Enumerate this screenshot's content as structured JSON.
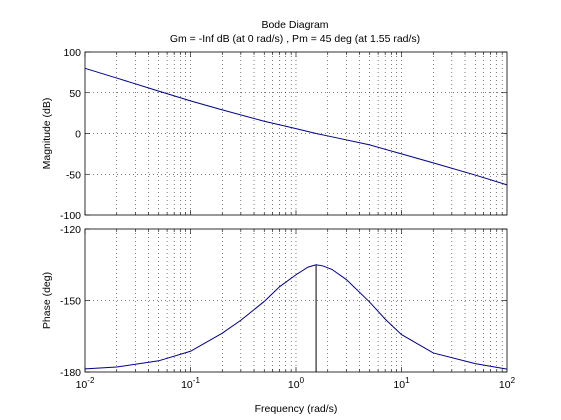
{
  "colors": {
    "background": "#ffffff",
    "axes": "#000000",
    "grid": "#000000",
    "line": "#00008b"
  },
  "chart_data": [
    {
      "type": "line",
      "title": "Bode Diagram",
      "subtitle": "Gm = -Inf dB (at 0 rad/s) ,  Pm = 45 deg (at 1.55 rad/s)",
      "xlabel": "",
      "ylabel": "Magnitude (dB)",
      "xscale": "log",
      "xlim": [
        0.01,
        100
      ],
      "ylim": [
        -100,
        100
      ],
      "yticks": [
        -100,
        -50,
        0,
        50,
        100
      ],
      "ytick_labels": [
        "-100",
        "-50",
        "0",
        "50",
        "100"
      ],
      "grid": true,
      "series": [
        {
          "x": [
            0.01,
            0.02,
            0.05,
            0.1,
            0.2,
            0.5,
            1,
            1.55,
            2,
            5,
            10,
            20,
            50,
            100
          ],
          "y": [
            80,
            68,
            52,
            40,
            29,
            15,
            6,
            0,
            -3,
            -14,
            -25,
            -36,
            -51,
            -63
          ]
        }
      ]
    },
    {
      "type": "line",
      "title": "",
      "xlabel": "Frequency  (rad/s)",
      "ylabel": "Phase (deg)",
      "xscale": "log",
      "xlim": [
        0.01,
        100
      ],
      "ylim": [
        -180,
        -120
      ],
      "yticks": [
        -180,
        -150,
        -120
      ],
      "ytick_labels": [
        "-180",
        "-150",
        "-120"
      ],
      "xticks": [
        0.01,
        0.1,
        1,
        10,
        100
      ],
      "xtick_labels": [
        {
          "base": "10",
          "exp": "-2"
        },
        {
          "base": "10",
          "exp": "-1"
        },
        {
          "base": "10",
          "exp": "0"
        },
        {
          "base": "10",
          "exp": "1"
        },
        {
          "base": "10",
          "exp": "2"
        }
      ],
      "grid": true,
      "series": [
        {
          "x": [
            0.01,
            0.02,
            0.05,
            0.1,
            0.2,
            0.3,
            0.5,
            0.7,
            1,
            1.3,
            1.55,
            1.8,
            2.2,
            3,
            5,
            7,
            10,
            20,
            50,
            100
          ],
          "y": [
            -178.7,
            -177.9,
            -175.3,
            -171.3,
            -163.7,
            -158.3,
            -150.4,
            -144.2,
            -139.2,
            -136.0,
            -135.0,
            -135.5,
            -137.0,
            -141.2,
            -150.7,
            -157.8,
            -164.3,
            -172.0,
            -176.5,
            -178.8
          ]
        }
      ],
      "annotations": [
        {
          "type": "phase-margin-marker",
          "x": 1.55,
          "y_from": -180,
          "y_to": -135
        }
      ]
    }
  ]
}
